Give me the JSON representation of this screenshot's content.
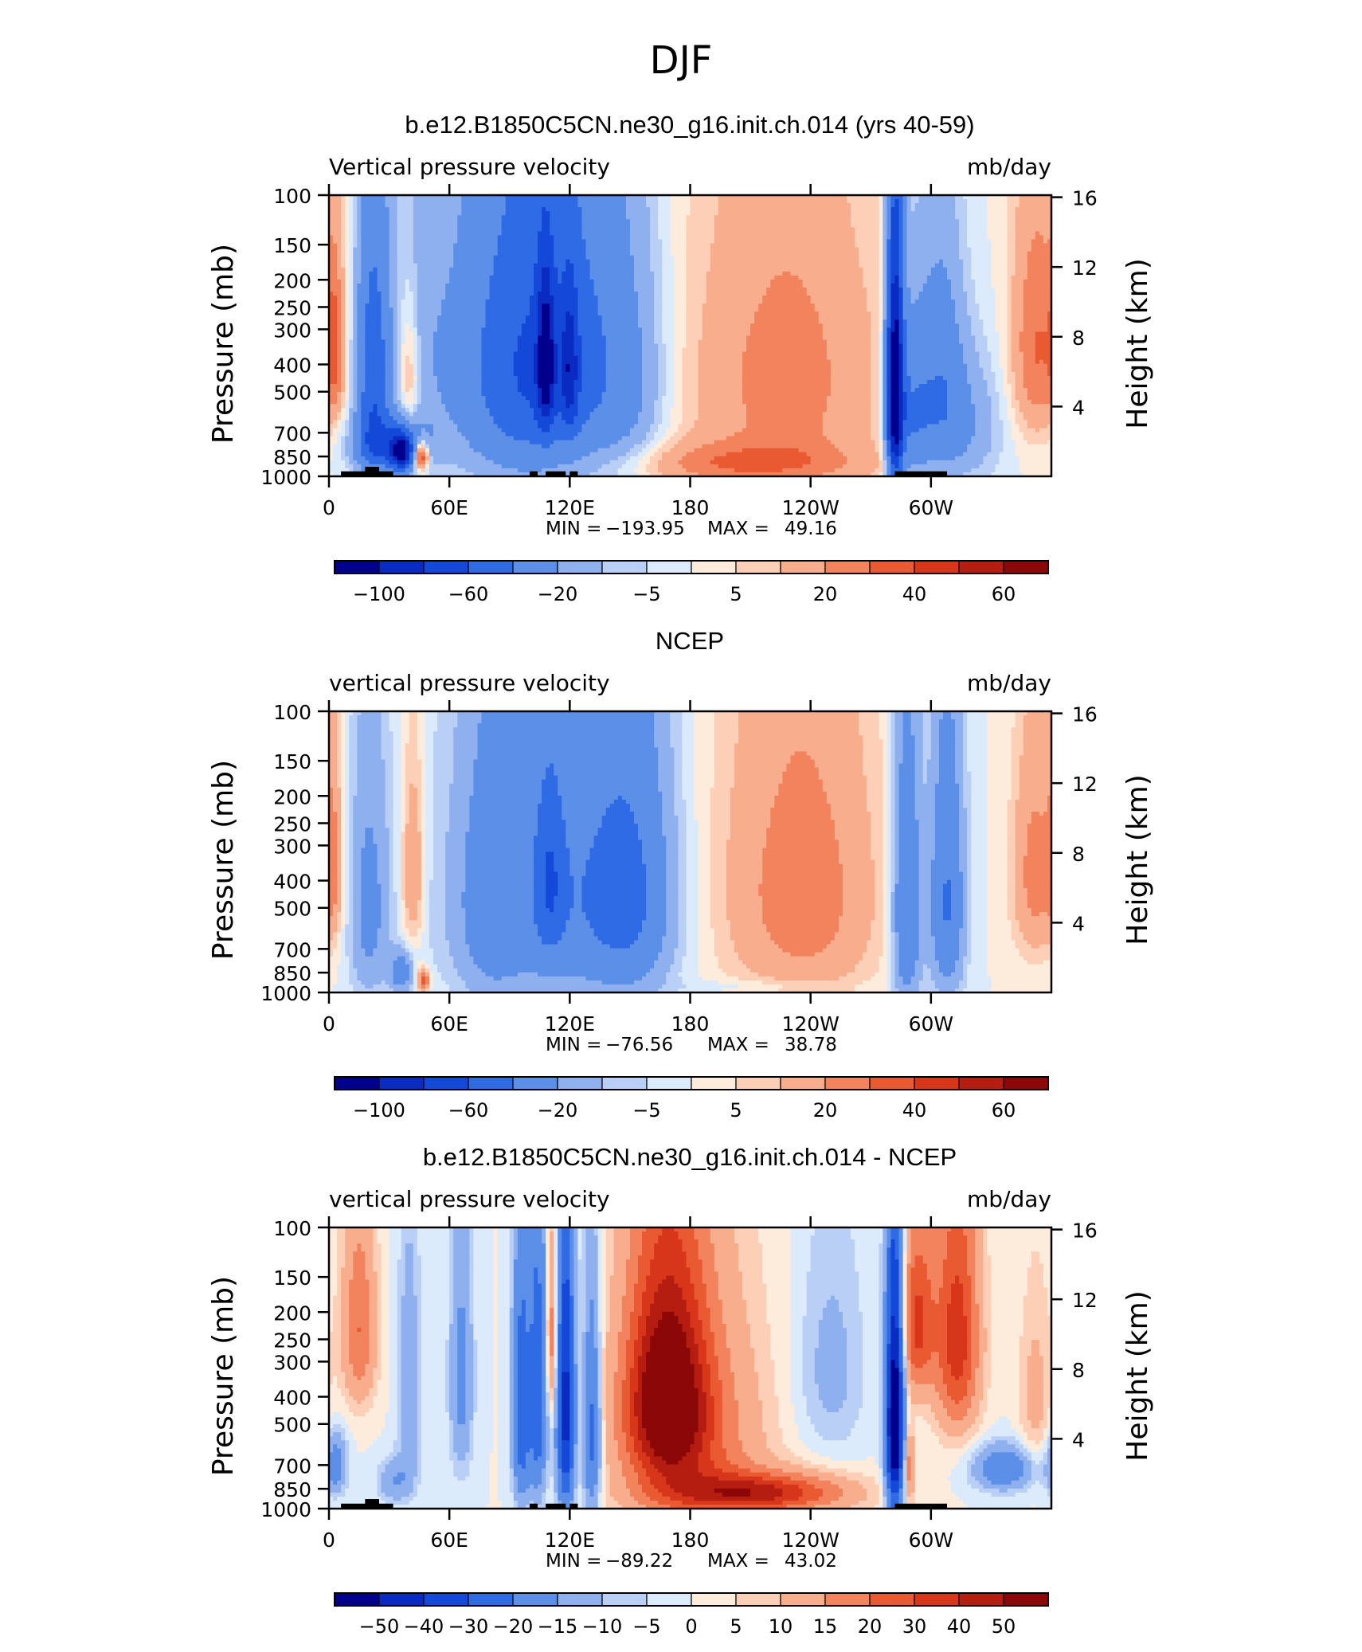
{
  "figure_title": "DJF",
  "colors": {
    "cmap": [
      "#00008c",
      "#0a2bc2",
      "#1448d9",
      "#2e6be4",
      "#5b8fe8",
      "#8fb0ef",
      "#b9cff6",
      "#dcebfc",
      "#fdebdc",
      "#fdcfb6",
      "#f8ad8c",
      "#f2835d",
      "#ea5a32",
      "#d8361a",
      "#b51d10",
      "#8c0707"
    ],
    "mountain": "#000000",
    "frame": "#000000"
  },
  "chart_data": [
    {
      "type": "heatmap",
      "title": "b.e12.B1850C5CN.ne30_g16.init.ch.014 (yrs 40-59)",
      "left_label": "Vertical pressure velocity",
      "right_label": "mb/day",
      "ylabel": "Pressure (mb)",
      "ylabel2": "Height (km)",
      "y_ticks": [
        "100",
        "150",
        "200",
        "250",
        "300",
        "400",
        "500",
        "700",
        "850",
        "1000"
      ],
      "y2_ticks": [
        "16",
        "12",
        "8",
        "4"
      ],
      "x_ticks": [
        "0",
        "60E",
        "120E",
        "180",
        "120W",
        "60W"
      ],
      "xlim": [
        0,
        360
      ],
      "ylim": [
        1000,
        100
      ],
      "min_label": "MIN = ",
      "min_value": "−193.95",
      "max_label": "MAX = ",
      "max_value": "49.16",
      "colorbar_labels": [
        "−100",
        "−60",
        "−20",
        "−5",
        "5",
        "20",
        "40",
        "60"
      ],
      "field_scale": 1.0,
      "terrain": true,
      "features": [
        {
          "lon": 22,
          "p": 450,
          "dx": 6,
          "dy": 320,
          "amp": -55
        },
        {
          "lon": 30,
          "p": 780,
          "dx": 12,
          "dy": 120,
          "amp": -45
        },
        {
          "lon": 36,
          "p": 820,
          "dx": 4,
          "dy": 90,
          "amp": -80
        },
        {
          "lon": 40,
          "p": 450,
          "dx": 4,
          "dy": 180,
          "amp": 22
        },
        {
          "lon": 46,
          "p": 850,
          "dx": 2.5,
          "dy": 70,
          "amp": 60
        },
        {
          "lon": 3,
          "p": 350,
          "dx": 3,
          "dy": 150,
          "amp": 22
        },
        {
          "lon": 110,
          "p": 380,
          "dx": 32,
          "dy": 360,
          "amp": -55
        },
        {
          "lon": 108,
          "p": 400,
          "dx": 3,
          "dy": 160,
          "amp": -70
        },
        {
          "lon": 120,
          "p": 420,
          "dx": 3,
          "dy": 160,
          "amp": -45
        },
        {
          "lon": 150,
          "p": 550,
          "dx": 14,
          "dy": 340,
          "amp": -12
        },
        {
          "lon": 215,
          "p": 450,
          "dx": 58,
          "dy": 420,
          "amp": 16
        },
        {
          "lon": 210,
          "p": 900,
          "dx": 40,
          "dy": 110,
          "amp": 25
        },
        {
          "lon": 230,
          "p": 450,
          "dx": 18,
          "dy": 260,
          "amp": 12
        },
        {
          "lon": 282,
          "p": 500,
          "dx": 3,
          "dy": 350,
          "amp": -120
        },
        {
          "lon": 290,
          "p": 600,
          "dx": 7,
          "dy": 300,
          "amp": -38
        },
        {
          "lon": 305,
          "p": 450,
          "dx": 8,
          "dy": 300,
          "amp": -30
        },
        {
          "lon": 316,
          "p": 650,
          "dx": 14,
          "dy": 260,
          "amp": -22
        },
        {
          "lon": 353,
          "p": 350,
          "dx": 9,
          "dy": 230,
          "amp": 30
        },
        {
          "lon": 45,
          "p": 300,
          "dx": 10,
          "dy": 400,
          "amp": -10
        },
        {
          "lon": 95,
          "p": 500,
          "dx": 22,
          "dy": 380,
          "amp": -15
        }
      ]
    },
    {
      "type": "heatmap",
      "title": "NCEP",
      "left_label": "vertical pressure velocity",
      "right_label": "mb/day",
      "ylabel": "Pressure (mb)",
      "ylabel2": "Height (km)",
      "y_ticks": [
        "100",
        "150",
        "200",
        "250",
        "300",
        "400",
        "500",
        "700",
        "850",
        "1000"
      ],
      "y2_ticks": [
        "16",
        "12",
        "8",
        "4"
      ],
      "x_ticks": [
        "0",
        "60E",
        "120E",
        "180",
        "120W",
        "60W"
      ],
      "xlim": [
        0,
        360
      ],
      "ylim": [
        1000,
        100
      ],
      "min_label": "MIN = ",
      "min_value": "−76.56",
      "max_label": "MAX = ",
      "max_value": "38.78",
      "colorbar_labels": [
        "−100",
        "−60",
        "−20",
        "−5",
        "5",
        "20",
        "40",
        "60"
      ],
      "field_scale": 1.0,
      "terrain": false,
      "features": [
        {
          "lon": 20,
          "p": 500,
          "dx": 7,
          "dy": 340,
          "amp": -25
        },
        {
          "lon": 36,
          "p": 850,
          "dx": 4,
          "dy": 100,
          "amp": -30
        },
        {
          "lon": 42,
          "p": 380,
          "dx": 4,
          "dy": 200,
          "amp": 22
        },
        {
          "lon": 47,
          "p": 900,
          "dx": 2,
          "dy": 60,
          "amp": 40
        },
        {
          "lon": 2,
          "p": 350,
          "dx": 3,
          "dy": 180,
          "amp": 18
        },
        {
          "lon": 115,
          "p": 450,
          "dx": 35,
          "dy": 380,
          "amp": -35
        },
        {
          "lon": 110,
          "p": 400,
          "dx": 5,
          "dy": 200,
          "amp": -30
        },
        {
          "lon": 150,
          "p": 450,
          "dx": 14,
          "dy": 330,
          "amp": -30
        },
        {
          "lon": 80,
          "p": 500,
          "dx": 10,
          "dy": 380,
          "amp": -15
        },
        {
          "lon": 240,
          "p": 450,
          "dx": 24,
          "dy": 380,
          "amp": 22
        },
        {
          "lon": 210,
          "p": 400,
          "dx": 30,
          "dy": 420,
          "amp": 8
        },
        {
          "lon": 288,
          "p": 500,
          "dx": 5,
          "dy": 380,
          "amp": -42
        },
        {
          "lon": 308,
          "p": 480,
          "dx": 6,
          "dy": 340,
          "amp": -42
        },
        {
          "lon": 352,
          "p": 380,
          "dx": 8,
          "dy": 230,
          "amp": 25
        },
        {
          "lon": 215,
          "p": 950,
          "dx": 30,
          "dy": 40,
          "amp": -6
        }
      ]
    },
    {
      "type": "heatmap",
      "title": "b.e12.B1850C5CN.ne30_g16.init.ch.014 - NCEP",
      "left_label": "vertical pressure velocity",
      "right_label": "mb/day",
      "ylabel": "Pressure (mb)",
      "ylabel2": "Height (km)",
      "y_ticks": [
        "100",
        "150",
        "200",
        "250",
        "300",
        "400",
        "500",
        "700",
        "850",
        "1000"
      ],
      "y2_ticks": [
        "16",
        "12",
        "8",
        "4"
      ],
      "x_ticks": [
        "0",
        "60E",
        "120E",
        "180",
        "120W",
        "60W"
      ],
      "xlim": [
        0,
        360
      ],
      "ylim": [
        1000,
        100
      ],
      "min_label": "MIN = ",
      "min_value": "−89.22",
      "max_label": "MAX = ",
      "max_value": "43.02",
      "colorbar_labels": [
        "−50",
        "−40",
        "−30",
        "−20",
        "−15",
        "−10",
        "−5",
        "0",
        "5",
        "10",
        "15",
        "20",
        "30",
        "40",
        "50"
      ],
      "field_scale": 0.6,
      "terrain": true,
      "features": [
        {
          "lon": 15,
          "p": 230,
          "dx": 6,
          "dy": 130,
          "amp": 18
        },
        {
          "lon": 3,
          "p": 700,
          "dx": 4,
          "dy": 120,
          "amp": -18
        },
        {
          "lon": 33,
          "p": 800,
          "dx": 6,
          "dy": 100,
          "amp": -12
        },
        {
          "lon": 40,
          "p": 400,
          "dx": 4,
          "dy": 250,
          "amp": -12
        },
        {
          "lon": 66,
          "p": 350,
          "dx": 4,
          "dy": 250,
          "amp": -15
        },
        {
          "lon": 96,
          "p": 450,
          "dx": 3,
          "dy": 300,
          "amp": -35
        },
        {
          "lon": 104,
          "p": 400,
          "dx": 3,
          "dy": 300,
          "amp": -35
        },
        {
          "lon": 111,
          "p": 250,
          "dx": 2,
          "dy": 130,
          "amp": 18
        },
        {
          "lon": 118,
          "p": 450,
          "dx": 3,
          "dy": 350,
          "amp": -55
        },
        {
          "lon": 131,
          "p": 550,
          "dx": 3,
          "dy": 300,
          "amp": -30
        },
        {
          "lon": 168,
          "p": 400,
          "dx": 14,
          "dy": 240,
          "amp": 38
        },
        {
          "lon": 180,
          "p": 600,
          "dx": 25,
          "dy": 380,
          "amp": 18
        },
        {
          "lon": 215,
          "p": 880,
          "dx": 30,
          "dy": 100,
          "amp": 30
        },
        {
          "lon": 250,
          "p": 320,
          "dx": 12,
          "dy": 200,
          "amp": -8
        },
        {
          "lon": 282,
          "p": 500,
          "dx": 3,
          "dy": 330,
          "amp": -80
        },
        {
          "lon": 289,
          "p": 700,
          "dx": 2,
          "dy": 150,
          "amp": 18
        },
        {
          "lon": 293,
          "p": 220,
          "dx": 6,
          "dy": 110,
          "amp": 25
        },
        {
          "lon": 313,
          "p": 250,
          "dx": 8,
          "dy": 180,
          "amp": 28
        },
        {
          "lon": 336,
          "p": 720,
          "dx": 10,
          "dy": 90,
          "amp": -22
        },
        {
          "lon": 352,
          "p": 400,
          "dx": 6,
          "dy": 200,
          "amp": 8
        }
      ]
    }
  ]
}
